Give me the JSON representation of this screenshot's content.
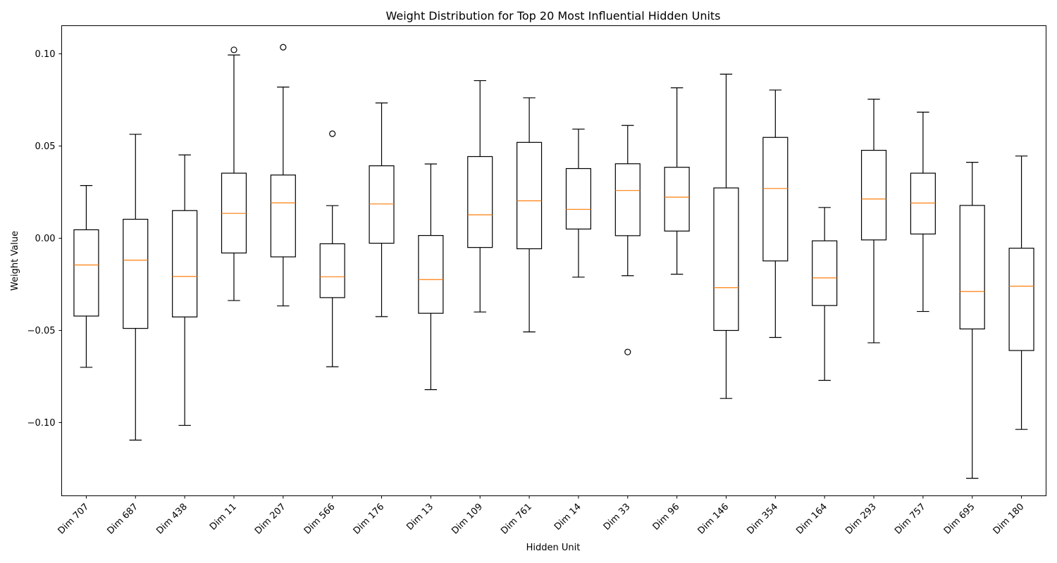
{
  "chart_data": {
    "type": "box",
    "title": "Weight Distribution for Top 20 Most Influential Hidden Units",
    "xlabel": "Hidden Unit",
    "ylabel": "Weight Value",
    "ylim": [
      -0.14,
      0.115
    ],
    "yticks": [
      -0.1,
      -0.05,
      0.0,
      0.05,
      0.1
    ],
    "ytick_labels": [
      "−0.10",
      "−0.05",
      "0.00",
      "0.05",
      "0.10"
    ],
    "grid": false,
    "colors": {
      "box": "#000000",
      "median": "#ff7f0e",
      "flier": "#000000"
    },
    "categories": [
      "Dim 707",
      "Dim 687",
      "Dim 438",
      "Dim 11",
      "Dim 207",
      "Dim 566",
      "Dim 176",
      "Dim 13",
      "Dim 109",
      "Dim 761",
      "Dim 14",
      "Dim 33",
      "Dim 96",
      "Dim 146",
      "Dim 354",
      "Dim 164",
      "Dim 293",
      "Dim 757",
      "Dim 695",
      "Dim 180"
    ],
    "boxes": [
      {
        "label": "Dim 707",
        "whislo": -0.0703,
        "q1": -0.0425,
        "median": -0.0148,
        "q3": 0.0043,
        "whishi": 0.0283,
        "fliers": []
      },
      {
        "label": "Dim 687",
        "whislo": -0.1098,
        "q1": -0.0492,
        "median": -0.0122,
        "q3": 0.01,
        "whishi": 0.0561,
        "fliers": []
      },
      {
        "label": "Dim 438",
        "whislo": -0.1018,
        "q1": -0.043,
        "median": -0.021,
        "q3": 0.0147,
        "whishi": 0.0449,
        "fliers": []
      },
      {
        "label": "Dim 11",
        "whislo": -0.0341,
        "q1": -0.0083,
        "median": 0.0132,
        "q3": 0.035,
        "whishi": 0.0991,
        "fliers": [
          0.1019
        ]
      },
      {
        "label": "Dim 207",
        "whislo": -0.037,
        "q1": -0.0104,
        "median": 0.0189,
        "q3": 0.034,
        "whishi": 0.0817,
        "fliers": [
          0.1033
        ]
      },
      {
        "label": "Dim 566",
        "whislo": -0.07,
        "q1": -0.0325,
        "median": -0.0212,
        "q3": -0.0033,
        "whishi": 0.0174,
        "fliers": [
          0.0564
        ]
      },
      {
        "label": "Dim 176",
        "whislo": -0.0428,
        "q1": -0.003,
        "median": 0.0183,
        "q3": 0.039,
        "whishi": 0.0731,
        "fliers": []
      },
      {
        "label": "Dim 13",
        "whislo": -0.0824,
        "q1": -0.041,
        "median": -0.0227,
        "q3": 0.0012,
        "whishi": 0.04,
        "fliers": []
      },
      {
        "label": "Dim 109",
        "whislo": -0.0403,
        "q1": -0.0053,
        "median": 0.0124,
        "q3": 0.044,
        "whishi": 0.0852,
        "fliers": []
      },
      {
        "label": "Dim 761",
        "whislo": -0.0511,
        "q1": -0.006,
        "median": 0.02,
        "q3": 0.0517,
        "whishi": 0.0759,
        "fliers": []
      },
      {
        "label": "Dim 14",
        "whislo": -0.0214,
        "q1": 0.0047,
        "median": 0.0154,
        "q3": 0.0375,
        "whishi": 0.0589,
        "fliers": []
      },
      {
        "label": "Dim 33",
        "whislo": -0.0206,
        "q1": 0.0011,
        "median": 0.0256,
        "q3": 0.0401,
        "whishi": 0.0609,
        "fliers": [
          -0.062
        ]
      },
      {
        "label": "Dim 96",
        "whislo": -0.0198,
        "q1": 0.0036,
        "median": 0.022,
        "q3": 0.0382,
        "whishi": 0.0813,
        "fliers": []
      },
      {
        "label": "Dim 146",
        "whislo": -0.0872,
        "q1": -0.0503,
        "median": -0.0271,
        "q3": 0.027,
        "whishi": 0.0887,
        "fliers": []
      },
      {
        "label": "Dim 354",
        "whislo": -0.0541,
        "q1": -0.0126,
        "median": 0.0267,
        "q3": 0.0544,
        "whishi": 0.0801,
        "fliers": []
      },
      {
        "label": "Dim 164",
        "whislo": -0.0774,
        "q1": -0.0368,
        "median": -0.0218,
        "q3": -0.0017,
        "whishi": 0.0164,
        "fliers": []
      },
      {
        "label": "Dim 293",
        "whislo": -0.057,
        "q1": -0.0012,
        "median": 0.021,
        "q3": 0.0474,
        "whishi": 0.0751,
        "fliers": []
      },
      {
        "label": "Dim 757",
        "whislo": -0.04,
        "q1": 0.002,
        "median": 0.0188,
        "q3": 0.035,
        "whishi": 0.0681,
        "fliers": []
      },
      {
        "label": "Dim 695",
        "whislo": -0.1305,
        "q1": -0.0495,
        "median": -0.0292,
        "q3": 0.0175,
        "whishi": 0.0409,
        "fliers": []
      },
      {
        "label": "Dim 180",
        "whislo": -0.104,
        "q1": -0.0612,
        "median": -0.0263,
        "q3": -0.0057,
        "whishi": 0.0443,
        "fliers": []
      }
    ]
  }
}
